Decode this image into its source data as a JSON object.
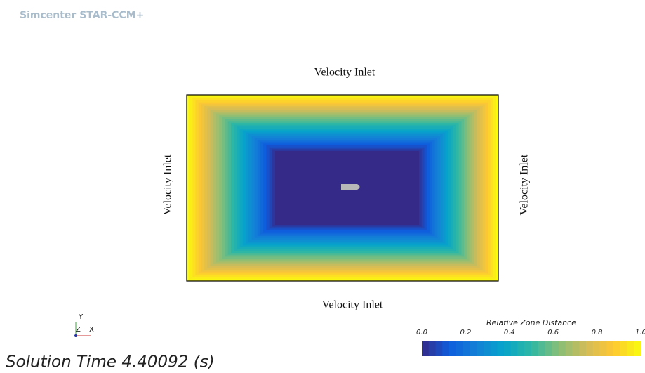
{
  "header": {
    "app_name": "Simcenter STAR-CCM+"
  },
  "scene": {
    "boundary_labels": {
      "top": "Velocity Inlet",
      "bottom": "Velocity Inlet",
      "left": "Velocity Inlet",
      "right": "Velocity Inlet"
    },
    "triad": {
      "y": "Y",
      "z": "Z",
      "x": "X"
    }
  },
  "colorbar": {
    "title": "Relative Zone Distance",
    "range": [
      0,
      1
    ],
    "ticks": [
      {
        "value": 0,
        "label": "0.0"
      },
      {
        "value": 0.2,
        "label": "0.2"
      },
      {
        "value": 0.4,
        "label": "0.4"
      },
      {
        "value": 0.6,
        "label": "0.6"
      },
      {
        "value": 0.8,
        "label": "0.8"
      },
      {
        "value": 1,
        "label": "1.0"
      }
    ],
    "colormap": [
      "#352a87",
      "#0f5cdd",
      "#1481d6",
      "#06a4ca",
      "#2eb7a4",
      "#87bf77",
      "#d1bb59",
      "#fec832",
      "#f9fb0e"
    ]
  },
  "footer": {
    "solution_time": "Solution Time 4.40092 (s)"
  }
}
